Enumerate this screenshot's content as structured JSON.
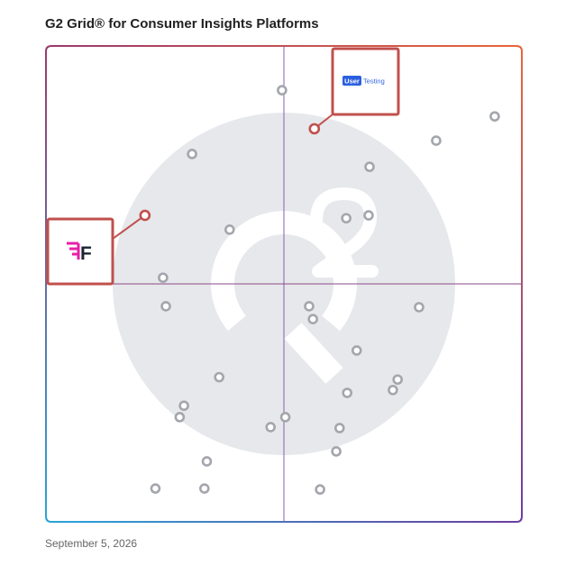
{
  "title": "G2 Grid® for Consumer Insights Platforms",
  "date": "September 5, 2026",
  "colors": {
    "border_top_left": "#9b3a6f",
    "border_top_right": "#e8653a",
    "border_bottom_left": "#2aa3d8",
    "border_bottom_right": "#6a3fa0",
    "quadrant_line_vertical": "#8a5bb0",
    "quadrant_line_horizontal": "#8a4a8a",
    "watermark": "#e6e8eb",
    "dot": "#a4a6ad",
    "highlight": "#c0504d",
    "usertesting_blue": "#2b5fe0",
    "logo_pink": "#e81fa8",
    "logo_dark": "#1b2333"
  },
  "chart_data": {
    "type": "scatter",
    "title": "G2 Grid® for Consumer Insights Platforms",
    "xlabel": "",
    "ylabel": "",
    "xlim": [
      0,
      100
    ],
    "ylim": [
      0,
      100
    ],
    "grid": false,
    "quadrant_split": {
      "x": 50,
      "y": 50
    },
    "points": [
      {
        "x": 49.6,
        "y": 90.7
      },
      {
        "x": 94.3,
        "y": 85.2
      },
      {
        "x": 82.0,
        "y": 80.1
      },
      {
        "x": 30.7,
        "y": 77.3
      },
      {
        "x": 68.0,
        "y": 74.6
      },
      {
        "x": 67.8,
        "y": 64.4
      },
      {
        "x": 63.1,
        "y": 63.8
      },
      {
        "x": 38.6,
        "y": 61.4
      },
      {
        "x": 24.6,
        "y": 51.3
      },
      {
        "x": 25.2,
        "y": 45.3
      },
      {
        "x": 55.3,
        "y": 45.3
      },
      {
        "x": 56.1,
        "y": 42.6
      },
      {
        "x": 78.4,
        "y": 45.1
      },
      {
        "x": 65.3,
        "y": 36.0
      },
      {
        "x": 36.4,
        "y": 30.4
      },
      {
        "x": 73.9,
        "y": 29.9
      },
      {
        "x": 72.9,
        "y": 27.7
      },
      {
        "x": 63.3,
        "y": 27.1
      },
      {
        "x": 29.0,
        "y": 24.4
      },
      {
        "x": 28.1,
        "y": 22.0
      },
      {
        "x": 50.3,
        "y": 22.0
      },
      {
        "x": 47.2,
        "y": 19.9
      },
      {
        "x": 61.7,
        "y": 19.7
      },
      {
        "x": 61.0,
        "y": 14.8
      },
      {
        "x": 33.8,
        "y": 12.7
      },
      {
        "x": 33.3,
        "y": 7.0
      },
      {
        "x": 23.0,
        "y": 7.0
      },
      {
        "x": 57.6,
        "y": 6.8
      }
    ],
    "highlighted": [
      {
        "name": "UserTesting",
        "x": 56.4,
        "y": 82.6,
        "callout": "above"
      },
      {
        "name": "F",
        "x": 20.8,
        "y": 64.4,
        "callout": "left"
      }
    ]
  },
  "callouts": {
    "usertesting": {
      "part1": "User",
      "part2": "Testing"
    },
    "f": {
      "mark": "F"
    }
  }
}
